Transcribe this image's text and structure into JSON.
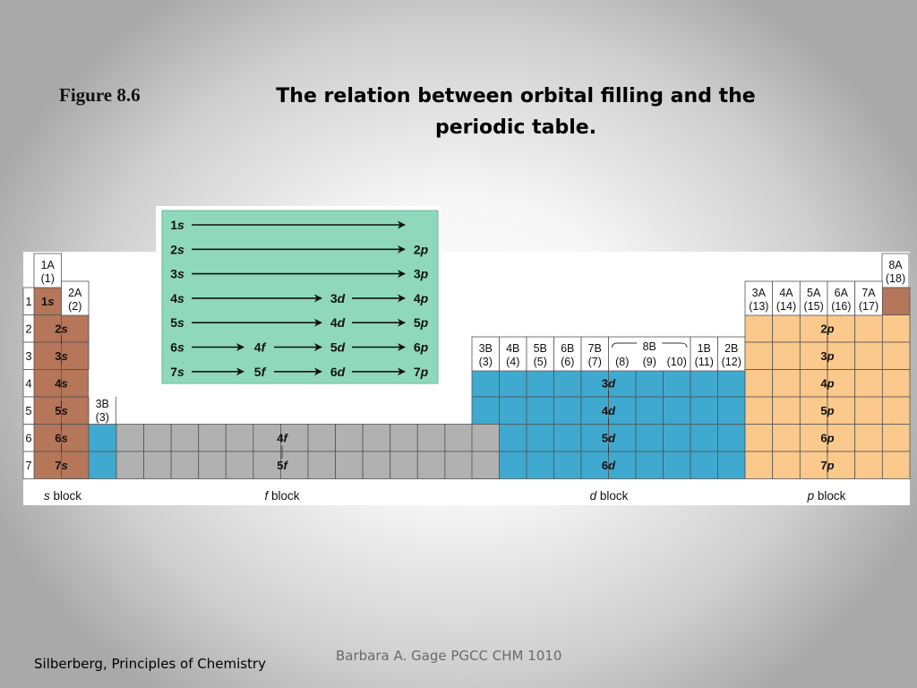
{
  "slide": {
    "figure_label": "Figure 8.6",
    "title": "The relation between orbital filling and the periodic table.",
    "credit": "Barbara A. Gage   PGCC  CHM 1010",
    "source": "Silberberg, Principles of Chemistry"
  },
  "colors": {
    "s_block": "#b5765a",
    "d_block": "#3fa9cf",
    "p_block": "#fbc98c",
    "f_block": "#b1b1b1",
    "order_box": "#8fd8be"
  },
  "groups": {
    "g1": {
      "name": "1A",
      "num": "(1)"
    },
    "g2": {
      "name": "2A",
      "num": "(2)"
    },
    "g3": {
      "name": "3B",
      "num": "(3)"
    },
    "d": [
      {
        "name": "3B",
        "num": "(3)"
      },
      {
        "name": "4B",
        "num": "(4)"
      },
      {
        "name": "5B",
        "num": "(5)"
      },
      {
        "name": "6B",
        "num": "(6)"
      },
      {
        "name": "7B",
        "num": "(7)"
      }
    ],
    "d8b_name": "8B",
    "d8b_nums": [
      "(8)",
      "(9)",
      "(10)"
    ],
    "d_tail": [
      {
        "name": "1B",
        "num": "(11)"
      },
      {
        "name": "2B",
        "num": "(12)"
      }
    ],
    "p": [
      {
        "name": "3A",
        "num": "(13)"
      },
      {
        "name": "4A",
        "num": "(14)"
      },
      {
        "name": "5A",
        "num": "(15)"
      },
      {
        "name": "6A",
        "num": "(16)"
      },
      {
        "name": "7A",
        "num": "(17)"
      }
    ],
    "g18": {
      "name": "8A",
      "num": "(18)"
    }
  },
  "periods": [
    "1",
    "2",
    "3",
    "4",
    "5",
    "6",
    "7"
  ],
  "sublevels": {
    "s": [
      {
        "n": "1",
        "l": "s"
      },
      {
        "n": "2",
        "l": "s"
      },
      {
        "n": "3",
        "l": "s"
      },
      {
        "n": "4",
        "l": "s"
      },
      {
        "n": "5",
        "l": "s"
      },
      {
        "n": "6",
        "l": "s"
      },
      {
        "n": "7",
        "l": "s"
      }
    ],
    "d": [
      {
        "n": "3",
        "l": "d"
      },
      {
        "n": "4",
        "l": "d"
      },
      {
        "n": "5",
        "l": "d"
      },
      {
        "n": "6",
        "l": "d"
      }
    ],
    "f": [
      {
        "n": "4",
        "l": "f"
      },
      {
        "n": "5",
        "l": "f"
      }
    ],
    "p": [
      {
        "n": "2",
        "l": "p"
      },
      {
        "n": "3",
        "l": "p"
      },
      {
        "n": "4",
        "l": "p"
      },
      {
        "n": "5",
        "l": "p"
      },
      {
        "n": "6",
        "l": "p"
      },
      {
        "n": "7",
        "l": "p"
      }
    ]
  },
  "block_labels": [
    {
      "l": "s",
      "w": " block"
    },
    {
      "l": "f",
      "w": " block"
    },
    {
      "l": "d",
      "w": " block"
    },
    {
      "l": "p",
      "w": " block"
    }
  ],
  "filling_order": [
    [
      {
        "n": "1",
        "l": "s"
      }
    ],
    [
      {
        "n": "2",
        "l": "s"
      },
      {
        "n": "2",
        "l": "p"
      }
    ],
    [
      {
        "n": "3",
        "l": "s"
      },
      {
        "n": "3",
        "l": "p"
      }
    ],
    [
      {
        "n": "4",
        "l": "s"
      },
      {
        "n": "3",
        "l": "d"
      },
      {
        "n": "4",
        "l": "p"
      }
    ],
    [
      {
        "n": "5",
        "l": "s"
      },
      {
        "n": "4",
        "l": "d"
      },
      {
        "n": "5",
        "l": "p"
      }
    ],
    [
      {
        "n": "6",
        "l": "s"
      },
      {
        "n": "4",
        "l": "f"
      },
      {
        "n": "5",
        "l": "d"
      },
      {
        "n": "6",
        "l": "p"
      }
    ],
    [
      {
        "n": "7",
        "l": "s"
      },
      {
        "n": "5",
        "l": "f"
      },
      {
        "n": "6",
        "l": "d"
      },
      {
        "n": "7",
        "l": "p"
      }
    ]
  ]
}
